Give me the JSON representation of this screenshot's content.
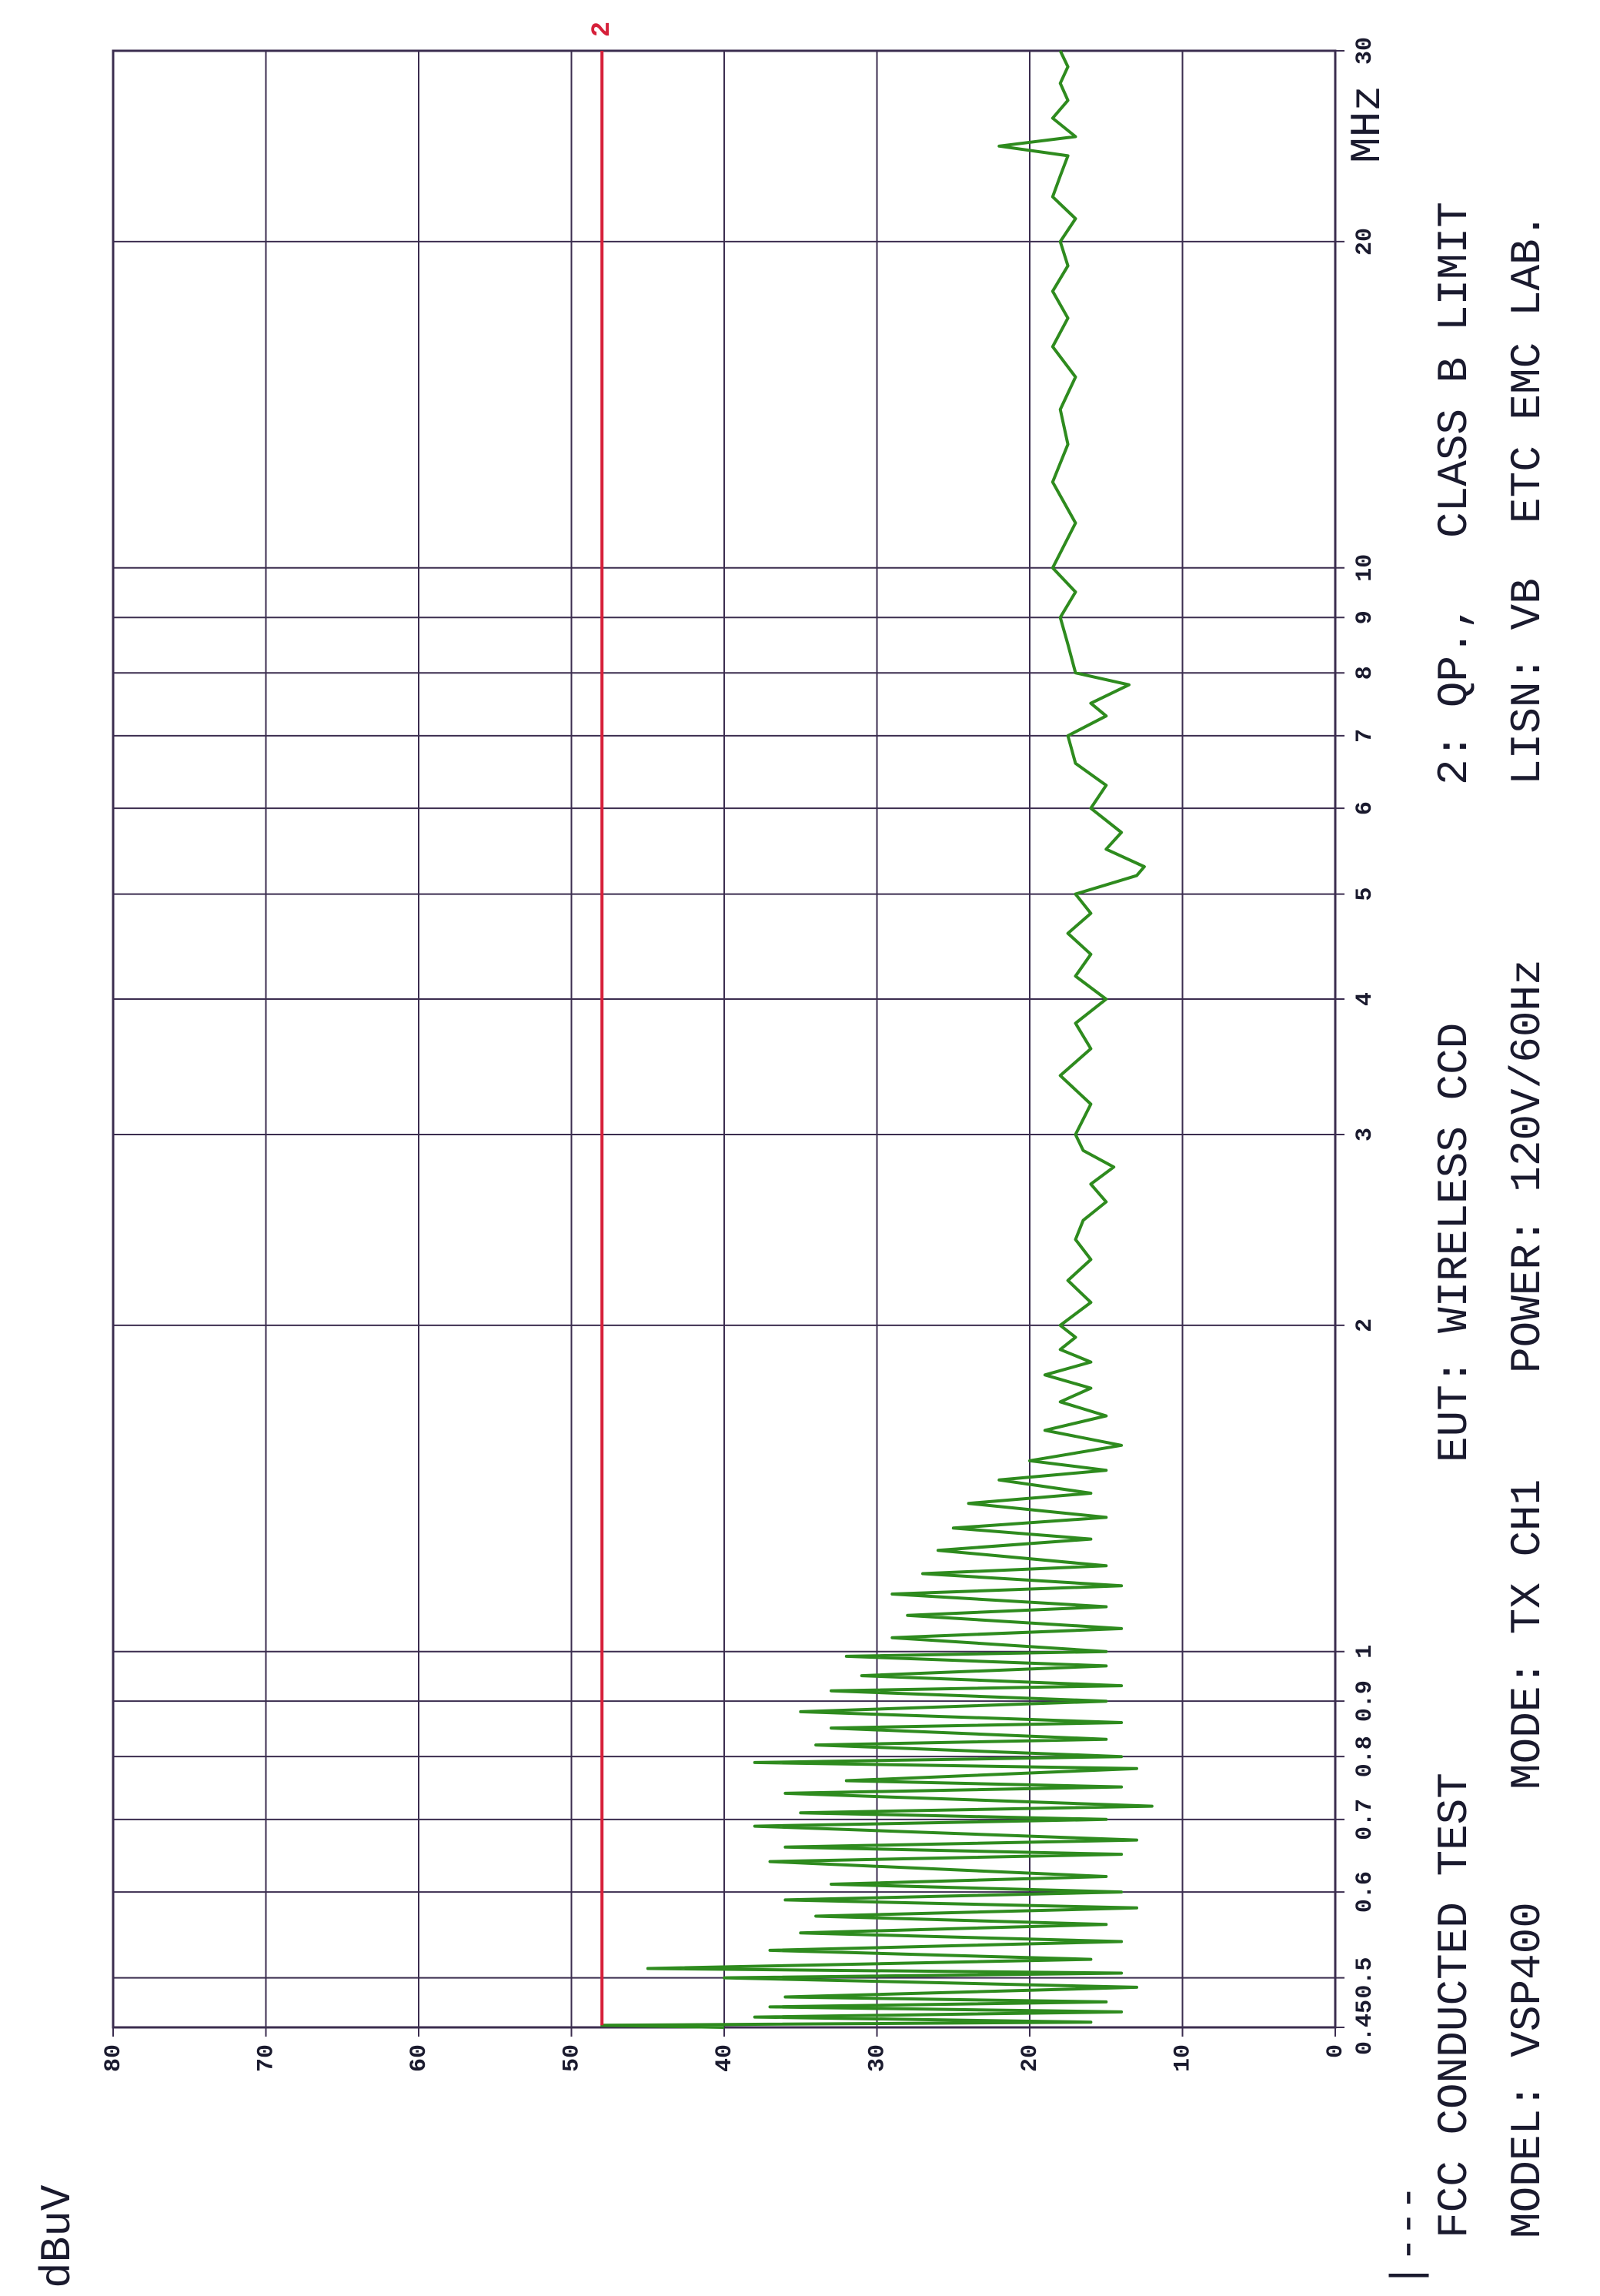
{
  "chart_data": {
    "type": "line",
    "y_label": "dBuV",
    "x_label": "MHz",
    "log_x": true,
    "grid": true,
    "xlim": [
      0.45,
      30
    ],
    "ylim": [
      0,
      80
    ],
    "xticks": [
      0.45,
      0.5,
      0.6,
      0.7,
      0.8,
      0.9,
      1,
      2,
      3,
      4,
      5,
      6,
      7,
      8,
      9,
      10,
      20,
      30
    ],
    "yticks": [
      0,
      10,
      20,
      30,
      40,
      50,
      60,
      70,
      80
    ],
    "annotations": [
      "|---",
      "FCC CONDUCTED TEST",
      "MODEL: VSP400",
      "EUT: WIRELESS CCD",
      "MODE: TX CH1",
      "POWER: 120V/60Hz",
      "2: QP.,",
      "LISN: VB",
      "CLASS B LIMIT",
      "ETC EMC LAB."
    ],
    "series": [
      {
        "color": "#2e8b1e",
        "x": [
          0.45,
          0.452,
          0.455,
          0.46,
          0.465,
          0.47,
          0.475,
          0.48,
          0.49,
          0.5,
          0.505,
          0.51,
          0.52,
          0.53,
          0.54,
          0.55,
          0.56,
          0.57,
          0.58,
          0.59,
          0.6,
          0.61,
          0.62,
          0.64,
          0.65,
          0.66,
          0.67,
          0.69,
          0.7,
          0.71,
          0.72,
          0.74,
          0.75,
          0.76,
          0.78,
          0.79,
          0.8,
          0.82,
          0.83,
          0.85,
          0.86,
          0.88,
          0.9,
          0.92,
          0.93,
          0.95,
          0.97,
          0.99,
          1.0,
          1.03,
          1.05,
          1.08,
          1.1,
          1.13,
          1.15,
          1.18,
          1.2,
          1.24,
          1.27,
          1.3,
          1.33,
          1.37,
          1.4,
          1.44,
          1.47,
          1.5,
          1.55,
          1.6,
          1.65,
          1.7,
          1.75,
          1.8,
          1.85,
          1.9,
          1.95,
          2.0,
          2.1,
          2.2,
          2.3,
          2.4,
          2.5,
          2.6,
          2.7,
          2.8,
          2.9,
          3.0,
          3.2,
          3.4,
          3.6,
          3.8,
          4.0,
          4.2,
          4.4,
          4.6,
          4.8,
          5.0,
          5.2,
          5.3,
          5.5,
          5.7,
          6.0,
          6.3,
          6.6,
          7.0,
          7.3,
          7.5,
          7.8,
          8.0,
          8.5,
          9.0,
          9.5,
          10,
          11,
          12,
          13,
          14,
          15,
          16,
          17,
          18,
          19,
          20,
          21,
          22,
          23,
          24,
          24.5,
          25,
          26,
          27,
          28,
          29,
          30
        ],
        "values": [
          40,
          48,
          16,
          38,
          14,
          37,
          15,
          36,
          13,
          40,
          14,
          45,
          16,
          37,
          14,
          35,
          15,
          34,
          13,
          36,
          14,
          33,
          15,
          37,
          14,
          36,
          13,
          38,
          15,
          35,
          12,
          36,
          14,
          32,
          13,
          38,
          14,
          34,
          15,
          33,
          14,
          35,
          15,
          33,
          14,
          31,
          15,
          32,
          15,
          29,
          14,
          28,
          15,
          29,
          14,
          27,
          15,
          26,
          16,
          25,
          15,
          24,
          16,
          22,
          15,
          20,
          14,
          19,
          15,
          18,
          16,
          19,
          16,
          18,
          17,
          18,
          16,
          17.5,
          16,
          17,
          16.5,
          15,
          16,
          14.5,
          16.5,
          17,
          16,
          18,
          16,
          17,
          15,
          17,
          16,
          17.5,
          16,
          17,
          13,
          12.5,
          15,
          14,
          16,
          15,
          17,
          17.5,
          15,
          16,
          13.5,
          17,
          17.5,
          18,
          17,
          18.5,
          17,
          18.5,
          17.5,
          18,
          17,
          18.5,
          17.5,
          18.5,
          17.5,
          18,
          17,
          18.5,
          18,
          17.5,
          22,
          17,
          18.5,
          17.5,
          18,
          17.5,
          18
        ]
      },
      {
        "name": "2",
        "color": "#d6203a",
        "x": [
          0.452,
          30
        ],
        "values": [
          48,
          48
        ]
      }
    ]
  }
}
